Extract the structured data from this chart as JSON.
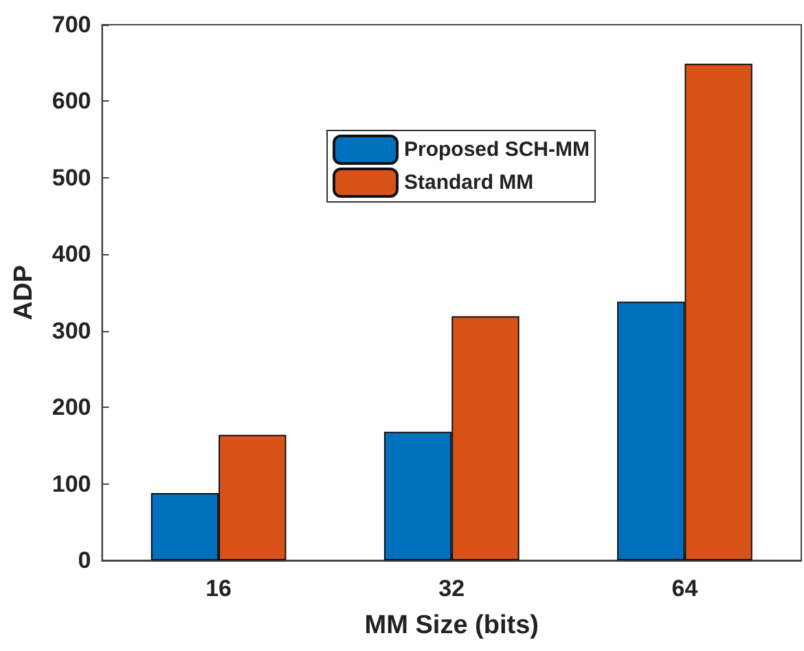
{
  "chart_data": {
    "type": "bar",
    "xlabel": "MM Size (bits)",
    "ylabel": "ADP",
    "categories": [
      "16",
      "32",
      "64"
    ],
    "series": [
      {
        "name": "Proposed SCH-MM",
        "color": "#0072bd",
        "values": [
          88,
          168,
          338
        ]
      },
      {
        "name": "Standard MM",
        "color": "#d95319",
        "values": [
          164,
          319,
          649
        ]
      }
    ],
    "ylim": [
      0,
      700
    ],
    "yticks": [
      0,
      100,
      200,
      300,
      400,
      500,
      600,
      700
    ],
    "grid": false,
    "legend": "top"
  }
}
